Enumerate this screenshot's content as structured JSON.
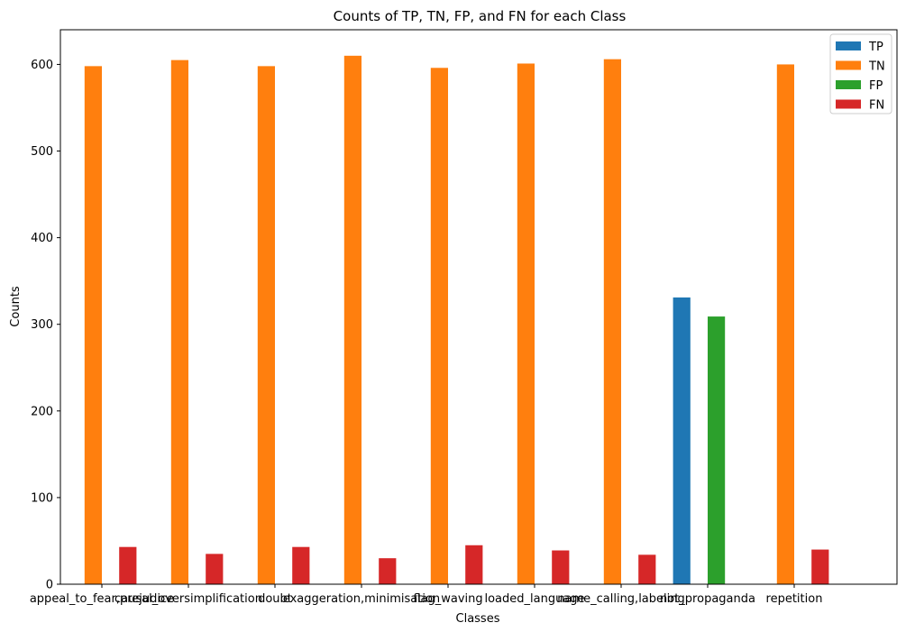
{
  "chart_data": {
    "type": "bar",
    "title": "Counts of TP, TN, FP, and FN for each Class",
    "xlabel": "Classes",
    "ylabel": "Counts",
    "ylim": [
      0,
      640
    ],
    "yticks": [
      0,
      100,
      200,
      300,
      400,
      500,
      600
    ],
    "categories": [
      "appeal_to_fear,prejudice",
      "causal_oversimplification",
      "doubt",
      "exaggeration,minimisation",
      "flag_waving",
      "loaded_language",
      "name_calling,labeling",
      "not_propaganda",
      "repetition"
    ],
    "series": [
      {
        "name": "TP",
        "color": "#1f77b4",
        "values": [
          0,
          0,
          0,
          0,
          0,
          0,
          0,
          331,
          0
        ]
      },
      {
        "name": "TN",
        "color": "#ff7f0e",
        "values": [
          598,
          605,
          598,
          610,
          596,
          601,
          606,
          0,
          600
        ]
      },
      {
        "name": "FP",
        "color": "#2ca02c",
        "values": [
          0,
          0,
          0,
          0,
          0,
          0,
          0,
          309,
          0
        ]
      },
      {
        "name": "FN",
        "color": "#d62728",
        "values": [
          43,
          35,
          43,
          30,
          45,
          39,
          34,
          0,
          40
        ]
      }
    ],
    "legend_position": "top-right",
    "grid": false
  }
}
